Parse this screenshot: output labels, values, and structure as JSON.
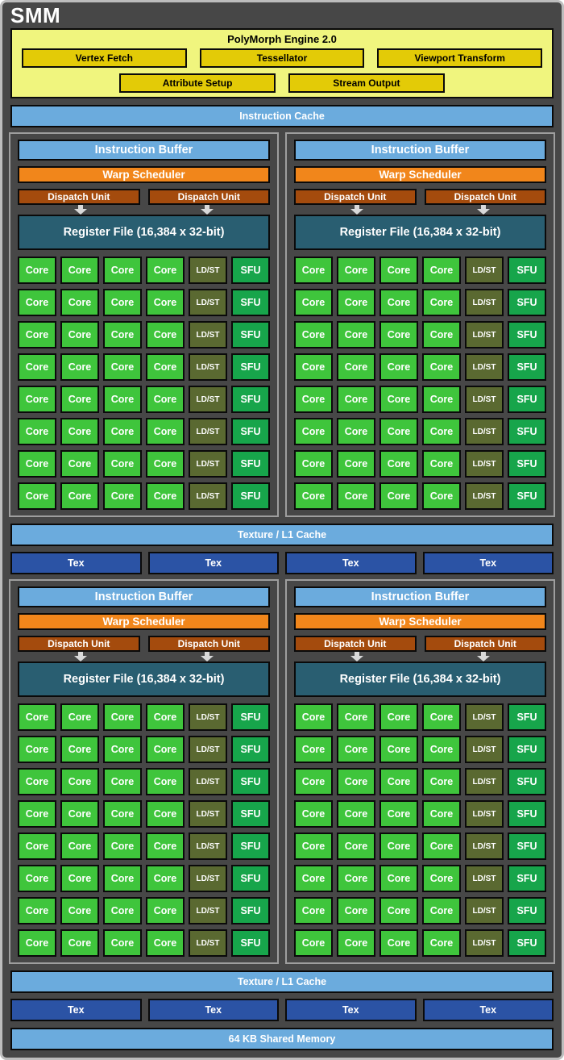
{
  "title": "SMM",
  "colors": {
    "background": "#474747",
    "frame_border": "#bdbdbd",
    "block_border": "#9e9e9e",
    "box_border": "#0a0a0a",
    "yellow_light": "#f0f57e",
    "yellow_dark": "#e3cb07",
    "light_blue": "#6babdd",
    "orange": "#f1861b",
    "dark_orange": "#a44b0d",
    "teal": "#295e71",
    "core_green": "#3fc53c",
    "sfu_green": "#17a54b",
    "ldst_olive": "#5a6931",
    "tex_blue": "#2b53a5",
    "arrow_gray": "#d9d9d9",
    "text_light": "#ffffff",
    "text_dark": "#000000"
  },
  "polymorph": {
    "title": "PolyMorph Engine 2.0",
    "row1": [
      "Vertex Fetch",
      "Tessellator",
      "Viewport Transform"
    ],
    "row2": [
      "Attribute Setup",
      "Stream Output"
    ]
  },
  "instruction_cache": "Instruction Cache",
  "processing_block": {
    "instruction_buffer": "Instruction Buffer",
    "warp_scheduler": "Warp Scheduler",
    "dispatch_unit": "Dispatch Unit",
    "dispatch_units_per_block": 2,
    "register_file": "Register File (16,384 x 32-bit)",
    "rows": 8,
    "row_pattern": [
      "core",
      "core",
      "core",
      "core",
      "ldst",
      "sfu"
    ],
    "cell_labels": {
      "core": "Core",
      "ldst": "LD/ST",
      "sfu": "SFU"
    }
  },
  "blocks_count": 4,
  "texture_cache": "Texture / L1 Cache",
  "tex_unit": "Tex",
  "tex_units_per_row": 4,
  "shared_memory": "64 KB Shared Memory"
}
